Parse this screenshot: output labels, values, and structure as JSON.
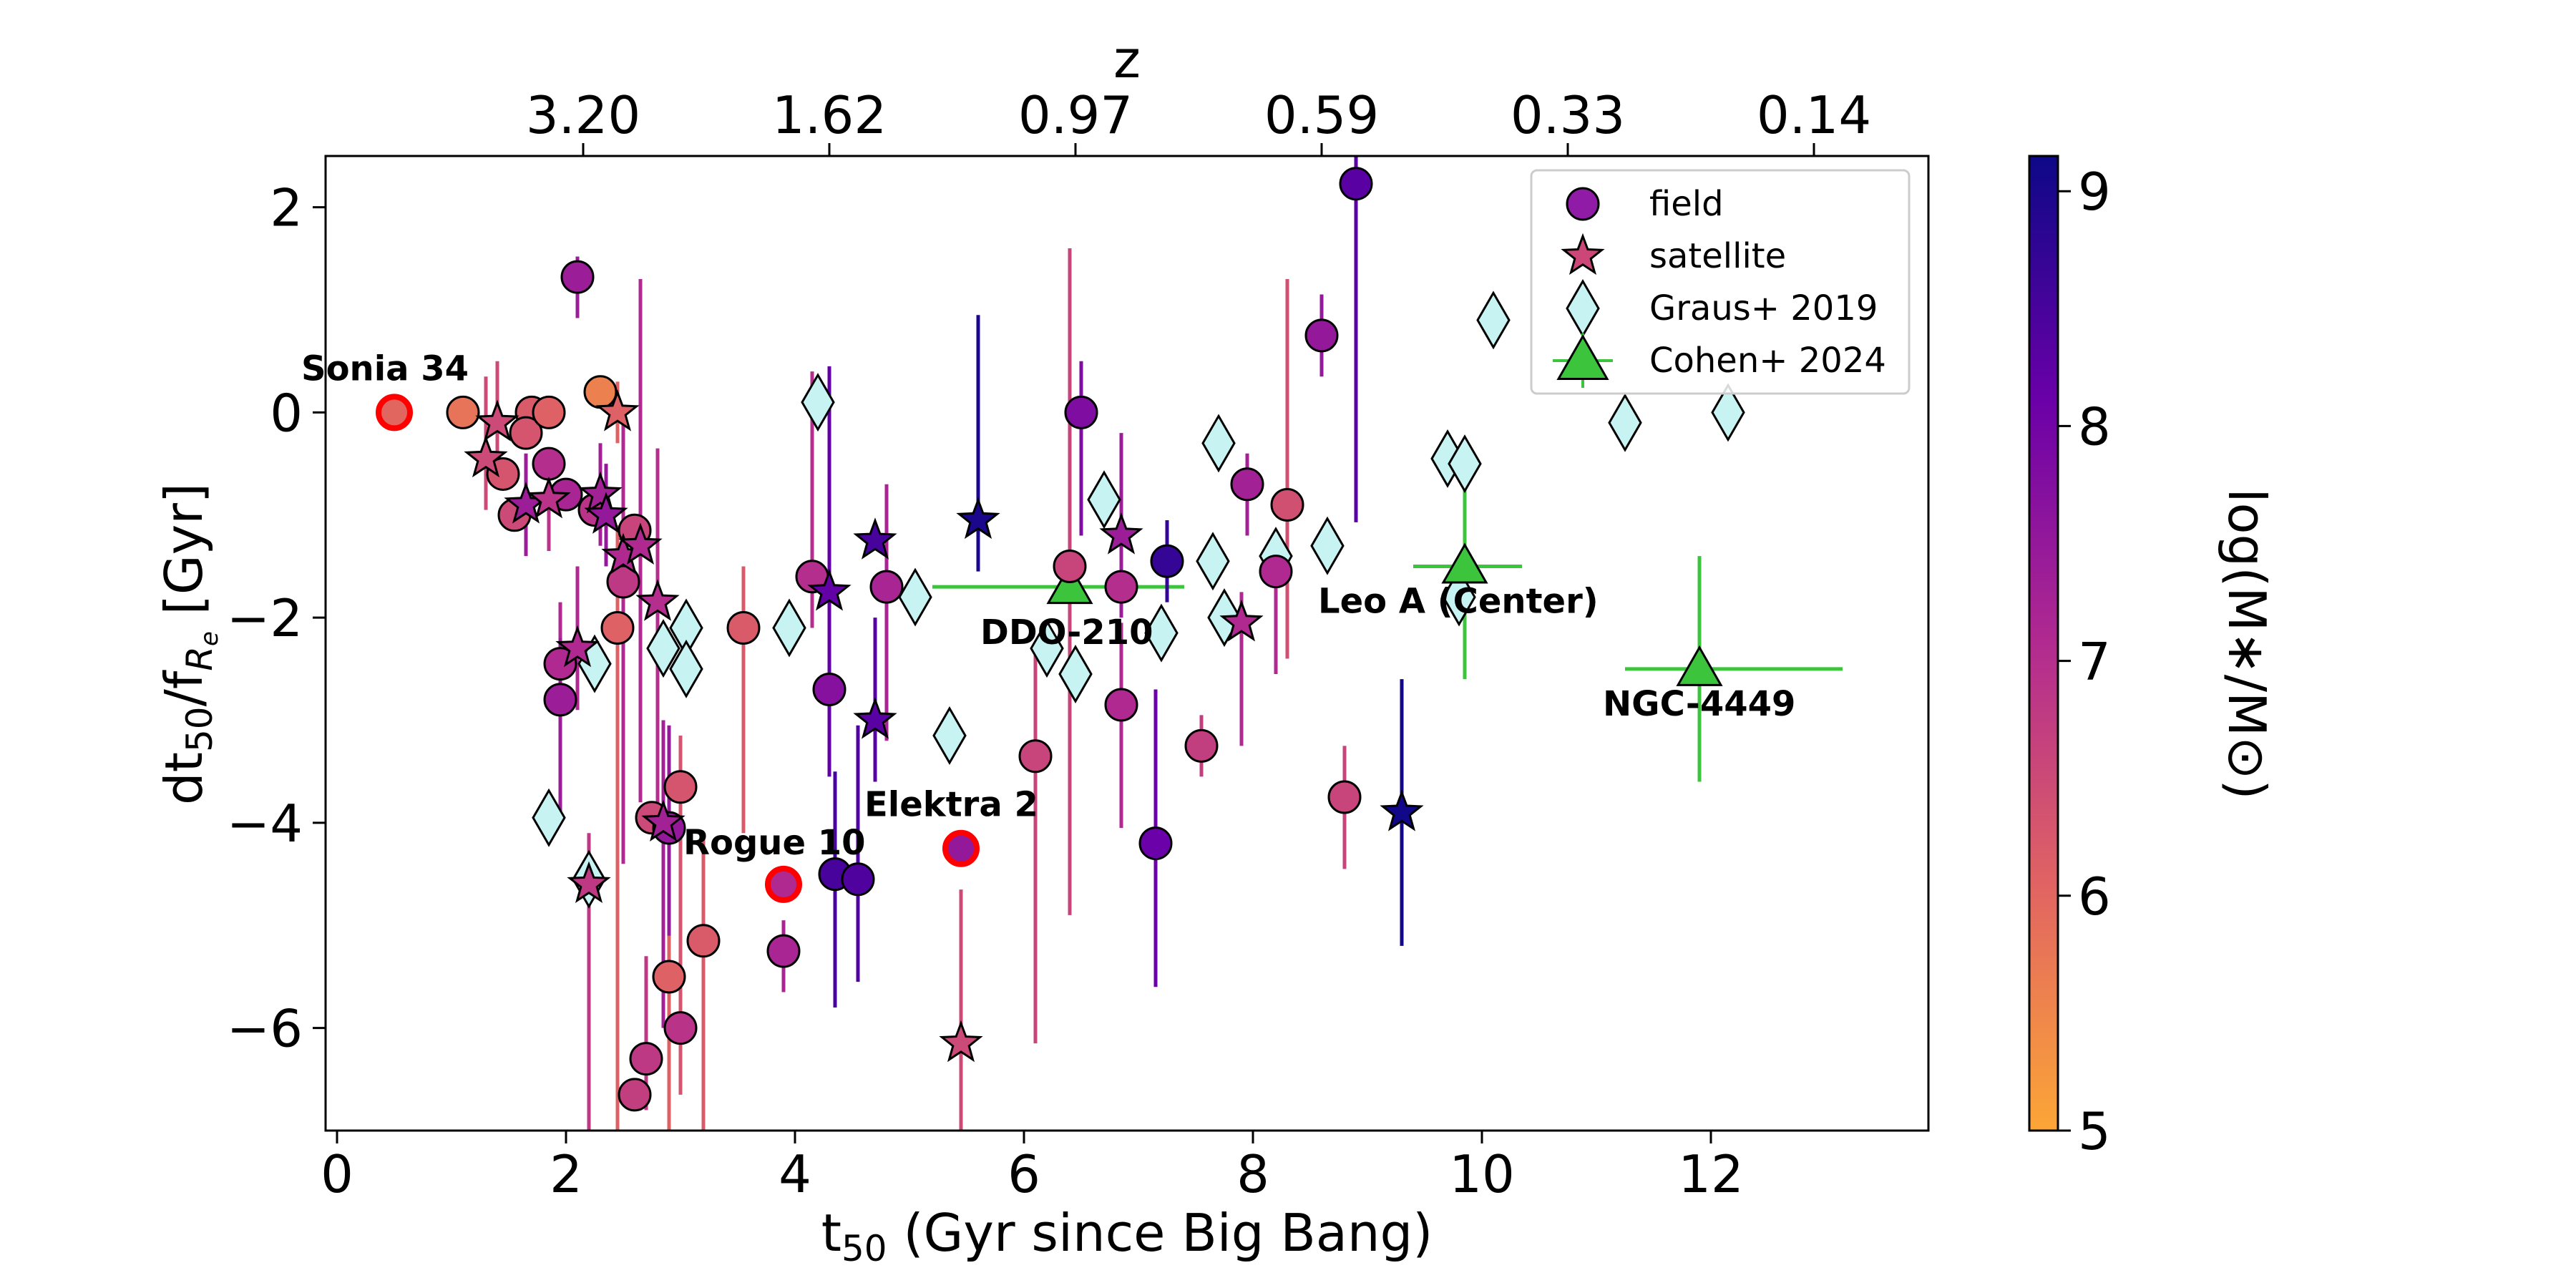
{
  "chart_data": {
    "type": "scatter",
    "xlabel": "t",
    "xlabel_sub": "50",
    "xlabel_rest": " (Gyr since Big Bang)",
    "ylabel": "dt",
    "ylabel_sub": "50",
    "ylabel_mid": "/f",
    "ylabel_sub2": "R",
    "ylabel_sub3": "e",
    "ylabel_rest": " [Gyr]",
    "top_axis_label": "z",
    "colorbar_label": "log(M∗/M⊙)",
    "xlim": [
      -0.1,
      13.9
    ],
    "ylim": [
      -7,
      2.5
    ],
    "x_ticks": [
      {
        "v": 0,
        "label": "0"
      },
      {
        "v": 2,
        "label": "2"
      },
      {
        "v": 4,
        "label": "4"
      },
      {
        "v": 6,
        "label": "6"
      },
      {
        "v": 8,
        "label": "8"
      },
      {
        "v": 10,
        "label": "10"
      },
      {
        "v": 12,
        "label": "12"
      }
    ],
    "y_ticks": [
      {
        "v": 2,
        "label": "2"
      },
      {
        "v": 0,
        "label": "0"
      },
      {
        "v": -2,
        "label": "−2"
      },
      {
        "v": -4,
        "label": "−4"
      },
      {
        "v": -6,
        "label": "−6"
      }
    ],
    "top_ticks": [
      {
        "v": 2.15,
        "label": "3.20"
      },
      {
        "v": 4.3,
        "label": "1.62"
      },
      {
        "v": 6.45,
        "label": "0.97"
      },
      {
        "v": 8.6,
        "label": "0.59"
      },
      {
        "v": 10.75,
        "label": "0.33"
      },
      {
        "v": 12.9,
        "label": "0.14"
      }
    ],
    "colorbar": {
      "min": 5,
      "max": 9.15,
      "ticks": [
        {
          "v": 5,
          "label": "5"
        },
        {
          "v": 6,
          "label": "6"
        },
        {
          "v": 7,
          "label": "7"
        },
        {
          "v": 8,
          "label": "8"
        },
        {
          "v": 9,
          "label": "9"
        }
      ]
    },
    "colormap": [
      "#0d0887",
      "#6a00a8",
      "#b12a90",
      "#e16462",
      "#fca636"
    ],
    "legend": [
      {
        "label": "field",
        "marker": "circle",
        "color": "#8f1ba6"
      },
      {
        "label": "satellite",
        "marker": "star",
        "color": "#cc4778"
      },
      {
        "label": "Graus+ 2019",
        "marker": "diamond",
        "color": "#c7f3f3"
      },
      {
        "label": "Cohen+ 2024",
        "marker": "triangle",
        "color": "#3cc43c"
      }
    ],
    "series": [
      {
        "name": "field",
        "marker": "circle",
        "points": [
          {
            "x": 0.5,
            "y": 0,
            "m": 6.0,
            "highlight": true
          },
          {
            "x": 1.1,
            "y": 0,
            "m": 5.8
          },
          {
            "x": 1.7,
            "y": 0,
            "m": 6.2
          },
          {
            "x": 1.65,
            "y": -0.2,
            "m": 6.3
          },
          {
            "x": 1.85,
            "y": 0,
            "m": 6.1
          },
          {
            "x": 2.3,
            "y": 0.2,
            "m": 5.6
          },
          {
            "x": 2.1,
            "y": 1.32,
            "m": 7.4,
            "eu": 0.2,
            "ed": 0.4
          },
          {
            "x": 1.45,
            "y": -0.6,
            "m": 6.3
          },
          {
            "x": 1.55,
            "y": -1.0,
            "m": 6.5
          },
          {
            "x": 1.85,
            "y": -0.5,
            "m": 7.0
          },
          {
            "x": 2.0,
            "y": -0.8,
            "m": 7.2
          },
          {
            "x": 2.25,
            "y": -0.95,
            "m": 6.9
          },
          {
            "x": 2.5,
            "y": -1.65,
            "m": 6.8
          },
          {
            "x": 2.6,
            "y": -1.15,
            "m": 6.6
          },
          {
            "x": 2.45,
            "y": -2.1,
            "m": 6.1,
            "eu": 1.0,
            "ed": 5.0
          },
          {
            "x": 1.95,
            "y": -2.45,
            "m": 7.1,
            "eu": 0.6,
            "ed": 0.6
          },
          {
            "x": 1.95,
            "y": -2.8,
            "m": 7.4,
            "eu": 0.6,
            "ed": 1.2
          },
          {
            "x": 2.75,
            "y": -3.95,
            "m": 6.5
          },
          {
            "x": 3.0,
            "y": -3.65,
            "m": 6.3,
            "eu": 0.5,
            "ed": 3.0
          },
          {
            "x": 2.9,
            "y": -4.05,
            "m": 7.5,
            "eu": 1.0,
            "ed": 2.0
          },
          {
            "x": 2.9,
            "y": -5.5,
            "m": 6.1,
            "eu": 0.4,
            "ed": 1.5
          },
          {
            "x": 3.2,
            "y": -5.15,
            "m": 6.2,
            "eu": 1.0,
            "ed": 2.0
          },
          {
            "x": 3.0,
            "y": -6.0,
            "m": 6.9
          },
          {
            "x": 2.7,
            "y": -6.3,
            "m": 6.8,
            "eu": 1.0,
            "ed": 0.5
          },
          {
            "x": 2.6,
            "y": -6.65,
            "m": 6.7
          },
          {
            "x": 3.55,
            "y": -2.1,
            "m": 6.2,
            "eu": 0.6,
            "ed": 2.0
          },
          {
            "x": 3.9,
            "y": -4.6,
            "m": 7.1,
            "highlight": true
          },
          {
            "x": 3.9,
            "y": -5.25,
            "m": 7.2,
            "eu": 0.3,
            "ed": 0.4
          },
          {
            "x": 4.15,
            "y": -1.6,
            "m": 7.0,
            "eu": 2.0,
            "ed": 0.5
          },
          {
            "x": 4.3,
            "y": -2.7,
            "m": 7.7,
            "eu": 0.6,
            "ed": 0.6
          },
          {
            "x": 4.35,
            "y": -4.5,
            "m": 8.5,
            "eu": 1.0,
            "ed": 1.3
          },
          {
            "x": 4.55,
            "y": -4.55,
            "m": 8.4,
            "eu": 1.5,
            "ed": 1.0
          },
          {
            "x": 4.8,
            "y": -1.7,
            "m": 7.2,
            "eu": 1.0,
            "ed": 1.5
          },
          {
            "x": 5.45,
            "y": -4.25,
            "m": 7.5,
            "highlight": true
          },
          {
            "x": 6.1,
            "y": -3.35,
            "m": 6.6,
            "eu": 1.0,
            "ed": 2.8
          },
          {
            "x": 6.5,
            "y": 0,
            "m": 7.8,
            "eu": 0.5,
            "ed": 1.2
          },
          {
            "x": 6.4,
            "y": -1.5,
            "m": 6.6,
            "eu": 3.1,
            "ed": 3.4
          },
          {
            "x": 6.85,
            "y": -1.7,
            "m": 7.0
          },
          {
            "x": 6.85,
            "y": -2.85,
            "m": 7.1,
            "eu": 0.8,
            "ed": 1.2
          },
          {
            "x": 7.25,
            "y": -1.45,
            "m": 8.7,
            "eu": 0.4,
            "ed": 0.4
          },
          {
            "x": 7.15,
            "y": -4.2,
            "m": 8.1,
            "eu": 1.5,
            "ed": 1.4
          },
          {
            "x": 7.55,
            "y": -3.25,
            "m": 6.7,
            "eu": 0.3,
            "ed": 0.3
          },
          {
            "x": 7.95,
            "y": -0.7,
            "m": 7.3,
            "eu": 0.3,
            "ed": 0.5
          },
          {
            "x": 8.2,
            "y": -1.55,
            "m": 7.1,
            "eu": 0.3,
            "ed": 1.0
          },
          {
            "x": 8.3,
            "y": -0.9,
            "m": 6.4,
            "eu": 2.2,
            "ed": 1.5
          },
          {
            "x": 8.6,
            "y": 0.75,
            "m": 7.5,
            "eu": 0.4,
            "ed": 0.4
          },
          {
            "x": 8.9,
            "y": 2.23,
            "m": 8.3,
            "eu": 0.3,
            "ed": 3.3
          },
          {
            "x": 8.8,
            "y": -3.75,
            "m": 6.6,
            "eu": 0.5,
            "ed": 0.7
          }
        ]
      },
      {
        "name": "satellite",
        "marker": "star",
        "points": [
          {
            "x": 2.45,
            "y": 0,
            "m": 6.1,
            "eu": 0.3,
            "ed": 0.3
          },
          {
            "x": 1.4,
            "y": -0.1,
            "m": 6.5,
            "eu": 0.6,
            "ed": 0.5
          },
          {
            "x": 1.3,
            "y": -0.45,
            "m": 6.5,
            "eu": 0.8,
            "ed": 0.5
          },
          {
            "x": 1.65,
            "y": -0.9,
            "m": 7.4,
            "eu": 0.5,
            "ed": 0.5
          },
          {
            "x": 1.85,
            "y": -0.85,
            "m": 6.9,
            "eu": 0.5,
            "ed": 0.5
          },
          {
            "x": 2.3,
            "y": -0.8,
            "m": 7.3,
            "eu": 0.5,
            "ed": 0.5
          },
          {
            "x": 2.35,
            "y": -1.0,
            "m": 7.5,
            "eu": 0.5,
            "ed": 0.5
          },
          {
            "x": 2.5,
            "y": -1.4,
            "m": 7.1,
            "eu": 1.4,
            "ed": 3.0
          },
          {
            "x": 2.65,
            "y": -1.3,
            "m": 7.1,
            "eu": 2.6,
            "ed": 2.5
          },
          {
            "x": 2.8,
            "y": -1.85,
            "m": 7.0,
            "eu": 1.5,
            "ed": 2.0
          },
          {
            "x": 2.1,
            "y": -2.3,
            "m": 7.1,
            "eu": 0.8,
            "ed": 0.6
          },
          {
            "x": 2.2,
            "y": -4.6,
            "m": 6.8,
            "eu": 0.5,
            "ed": 2.8
          },
          {
            "x": 2.85,
            "y": -4.0,
            "m": 7.3,
            "eu": 1.0,
            "ed": 2.0
          },
          {
            "x": 4.7,
            "y": -1.25,
            "m": 8.5
          },
          {
            "x": 4.3,
            "y": -1.75,
            "m": 8.2,
            "eu": 2.2,
            "ed": 1.8
          },
          {
            "x": 4.7,
            "y": -3.0,
            "m": 8.3,
            "eu": 1.0,
            "ed": 0.6
          },
          {
            "x": 5.6,
            "y": -1.05,
            "m": 9.0,
            "eu": 2.0,
            "ed": 0.5
          },
          {
            "x": 6.85,
            "y": -1.2,
            "m": 7.4,
            "eu": 1.0,
            "ed": 0.8
          },
          {
            "x": 7.9,
            "y": -2.05,
            "m": 7.1,
            "eu": 0.3,
            "ed": 1.2
          },
          {
            "x": 5.45,
            "y": -6.15,
            "m": 6.5,
            "eu": 1.5,
            "ed": 1.0
          },
          {
            "x": 9.3,
            "y": -3.9,
            "m": 9.1,
            "eu": 1.3,
            "ed": 1.3
          }
        ]
      },
      {
        "name": "Graus+ 2019",
        "marker": "diamond",
        "points": [
          {
            "x": 1.85,
            "y": -3.95
          },
          {
            "x": 2.2,
            "y": -4.55
          },
          {
            "x": 2.25,
            "y": -2.45
          },
          {
            "x": 2.85,
            "y": -2.3
          },
          {
            "x": 3.05,
            "y": -2.1
          },
          {
            "x": 3.05,
            "y": -2.5
          },
          {
            "x": 3.95,
            "y": -2.1
          },
          {
            "x": 4.2,
            "y": 0.1
          },
          {
            "x": 5.05,
            "y": -1.8
          },
          {
            "x": 5.35,
            "y": -3.15
          },
          {
            "x": 6.2,
            "y": -2.3
          },
          {
            "x": 6.45,
            "y": -2.55
          },
          {
            "x": 6.7,
            "y": -0.85
          },
          {
            "x": 7.2,
            "y": -2.15
          },
          {
            "x": 7.65,
            "y": -1.45
          },
          {
            "x": 7.7,
            "y": -0.3
          },
          {
            "x": 7.75,
            "y": -2.0
          },
          {
            "x": 8.2,
            "y": -1.4
          },
          {
            "x": 8.65,
            "y": -1.3
          },
          {
            "x": 9.7,
            "y": -0.45
          },
          {
            "x": 9.85,
            "y": -0.5
          },
          {
            "x": 9.8,
            "y": -1.8
          },
          {
            "x": 10.1,
            "y": 0.9
          },
          {
            "x": 11.25,
            "y": -0.1
          },
          {
            "x": 12.15,
            "y": 0
          }
        ]
      },
      {
        "name": "Cohen+ 2024",
        "marker": "triangle",
        "points": [
          {
            "x": 6.4,
            "y": -1.7,
            "xl": 1.2,
            "xr": 1.0,
            "eu": 1.7,
            "ed": 2.8
          },
          {
            "x": 9.85,
            "y": -1.5,
            "xl": 0.45,
            "xr": 0.5,
            "eu": 1.0,
            "ed": 1.1
          },
          {
            "x": 11.9,
            "y": -2.5,
            "xl": 0.65,
            "xr": 1.25,
            "eu": 1.1,
            "ed": 1.1
          }
        ]
      }
    ],
    "annotations": [
      {
        "text": "Sonia 34",
        "x": 0.5,
        "y": 0,
        "dx": -130,
        "dy": -45
      },
      {
        "text": "Rogue 10",
        "x": 3.9,
        "y": -4.6,
        "dx": -140,
        "dy": -42
      },
      {
        "text": "Elektra 2",
        "x": 5.45,
        "y": -4.25,
        "dx": -135,
        "dy": -45
      },
      {
        "text": "DDO-210",
        "x": 6.4,
        "y": -1.7,
        "dx": -125,
        "dy": 80
      },
      {
        "text": "Leo A (Center)",
        "x": 9.85,
        "y": -1.5,
        "dx": -205,
        "dy": 65
      },
      {
        "text": "NGC-4449",
        "x": 11.9,
        "y": -2.5,
        "dx": -135,
        "dy": 65
      }
    ]
  }
}
